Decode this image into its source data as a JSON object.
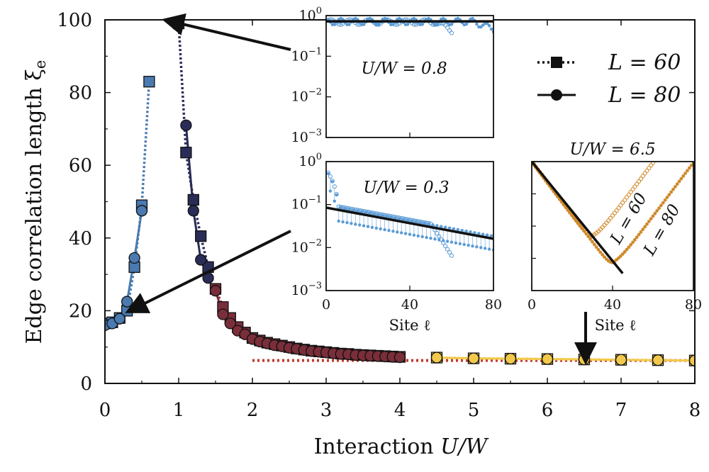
{
  "chart_data": [
    {
      "type": "scatter",
      "xlabel": "Interaction U/W",
      "ylabel": "Edge correlation length ξe",
      "xlim": [
        0,
        8
      ],
      "ylim": [
        0,
        100
      ],
      "xticks": [
        0,
        1,
        2,
        3,
        4,
        5,
        6,
        7,
        8
      ],
      "yticks": [
        0,
        20,
        40,
        60,
        80,
        100
      ],
      "legend": {
        "position": "top-right",
        "entries": [
          "L = 60",
          "L = 80"
        ]
      },
      "reference_line": {
        "style": "dotted",
        "color": "#c0392b",
        "x_range": [
          2,
          8
        ],
        "y": 6.3
      },
      "series": [
        {
          "group": "weak",
          "color": "#4a7ab0",
          "L60": [
            [
              0.0,
              16.5
            ],
            [
              0.1,
              16.8
            ],
            [
              0.2,
              18.0
            ],
            [
              0.3,
              20.0
            ],
            [
              0.4,
              32.0
            ],
            [
              0.5,
              49.0
            ],
            [
              0.6,
              83.0
            ]
          ],
          "L80": [
            [
              0.0,
              16.0
            ],
            [
              0.1,
              16.5
            ],
            [
              0.2,
              17.8
            ],
            [
              0.3,
              22.5
            ],
            [
              0.4,
              34.5
            ],
            [
              0.5,
              47.5
            ]
          ]
        },
        {
          "group": "strong-dark",
          "color": "#2a2c58",
          "L60": [
            [
              1.0,
              99.0
            ],
            [
              1.1,
              63.5
            ],
            [
              1.2,
              50.5
            ],
            [
              1.3,
              40.5
            ],
            [
              1.4,
              32.0
            ]
          ],
          "L80": [
            [
              1.1,
              71.0
            ],
            [
              1.2,
              47.5
            ],
            [
              1.3,
              34.0
            ],
            [
              1.4,
              29.0
            ]
          ]
        },
        {
          "group": "crossover",
          "color": "#7a2e3a",
          "L60": [
            [
              1.5,
              26.0
            ],
            [
              1.6,
              21.0
            ],
            [
              1.7,
              18.0
            ],
            [
              1.8,
              15.5
            ],
            [
              1.9,
              14.0
            ],
            [
              2.0,
              12.5
            ],
            [
              2.1,
              11.8
            ],
            [
              2.2,
              11.2
            ],
            [
              2.3,
              10.8
            ],
            [
              2.4,
              10.4
            ],
            [
              2.5,
              10.0
            ],
            [
              2.6,
              9.6
            ],
            [
              2.7,
              9.3
            ],
            [
              2.8,
              9.0
            ],
            [
              2.9,
              8.8
            ],
            [
              3.0,
              8.6
            ],
            [
              3.1,
              8.4
            ],
            [
              3.2,
              8.2
            ],
            [
              3.3,
              8.1
            ],
            [
              3.4,
              7.9
            ],
            [
              3.5,
              7.8
            ],
            [
              3.6,
              7.7
            ],
            [
              3.7,
              7.6
            ],
            [
              3.8,
              7.5
            ],
            [
              3.9,
              7.4
            ],
            [
              4.0,
              7.3
            ]
          ],
          "L80": [
            [
              1.5,
              25.5
            ],
            [
              1.6,
              19.0
            ],
            [
              1.7,
              16.5
            ],
            [
              1.8,
              14.5
            ],
            [
              1.9,
              13.5
            ],
            [
              2.0,
              12.2
            ],
            [
              2.1,
              11.5
            ],
            [
              2.2,
              11.0
            ],
            [
              2.3,
              10.5
            ],
            [
              2.4,
              10.2
            ],
            [
              2.5,
              9.8
            ],
            [
              2.6,
              9.5
            ],
            [
              2.7,
              9.2
            ],
            [
              2.8,
              8.9
            ],
            [
              2.9,
              8.7
            ],
            [
              3.0,
              8.5
            ],
            [
              3.1,
              8.3
            ],
            [
              3.2,
              8.1
            ],
            [
              3.3,
              8.0
            ],
            [
              3.4,
              7.8
            ],
            [
              3.5,
              7.7
            ],
            [
              3.6,
              7.6
            ],
            [
              3.7,
              7.5
            ],
            [
              3.8,
              7.4
            ],
            [
              3.9,
              7.3
            ],
            [
              4.0,
              7.2
            ]
          ]
        },
        {
          "group": "strong-large",
          "color": "#f2c94c",
          "L60": [
            [
              4.5,
              7.1
            ],
            [
              5.0,
              6.9
            ],
            [
              5.5,
              6.8
            ],
            [
              6.0,
              6.7
            ],
            [
              6.5,
              6.6
            ],
            [
              7.0,
              6.5
            ],
            [
              7.5,
              6.4
            ],
            [
              8.0,
              6.3
            ]
          ],
          "L80": [
            [
              4.5,
              7.1
            ],
            [
              5.0,
              6.9
            ],
            [
              5.5,
              6.8
            ],
            [
              6.0,
              6.7
            ],
            [
              6.5,
              6.6
            ],
            [
              7.0,
              6.5
            ],
            [
              7.5,
              6.4
            ],
            [
              8.0,
              6.3
            ]
          ]
        }
      ]
    },
    {
      "type": "scatter",
      "annotation": "U/W = 0.8",
      "xlim": [
        0,
        80
      ],
      "ylim_log10": [
        -3,
        0
      ],
      "yticks": [
        "10^0",
        "10^-1",
        "10^-2",
        "10^-3"
      ],
      "xticklabels": false,
      "color": "#5b9bd5",
      "fit_line": {
        "x": [
          0,
          80
        ],
        "y": [
          0.72,
          0.72
        ]
      }
    },
    {
      "type": "scatter",
      "annotation": "U/W = 0.3",
      "xlabel": "Site ℓ",
      "xlim": [
        0,
        80
      ],
      "ylim_log10": [
        -3,
        0
      ],
      "xticks": [
        0,
        40,
        80
      ],
      "yticks": [
        "10^0",
        "10^-1",
        "10^-2",
        "10^-3"
      ],
      "color": "#5b9bd5",
      "fit_line": {
        "x": [
          0,
          80
        ],
        "y": [
          0.085,
          0.016
        ]
      }
    },
    {
      "type": "scatter",
      "title": "U/W = 6.5",
      "xlabel": "Site ℓ",
      "xlim": [
        0,
        80
      ],
      "xticks": [
        0,
        40,
        80
      ],
      "color": "#d08a2c",
      "curve_labels": [
        "L = 60",
        "L = 80"
      ],
      "fit_line": {
        "x": [
          0,
          45
        ],
        "y": [
          1.0,
          6.3e-06
        ]
      }
    }
  ],
  "text": {
    "ylabel": "Edge correlation length ξ",
    "ylabel_sub": "e",
    "xlabel_a": "Interaction ",
    "xlabel_b": "U/W",
    "inset_a": "U/W = 0.8",
    "inset_b": "U/W = 0.3",
    "inset_c_title": "U/W = 6.5",
    "site_label": "Site ℓ",
    "legend_60": "L = 60",
    "legend_80": "L = 80",
    "curve_60": "L = 60",
    "curve_80": "L = 80",
    "main_xticks": [
      "0",
      "1",
      "2",
      "3",
      "4",
      "5",
      "6",
      "7",
      "8"
    ],
    "main_yticks": [
      "0",
      "20",
      "40",
      "60",
      "80",
      "100"
    ],
    "inset_xticks": [
      "0",
      "40",
      "80"
    ]
  }
}
